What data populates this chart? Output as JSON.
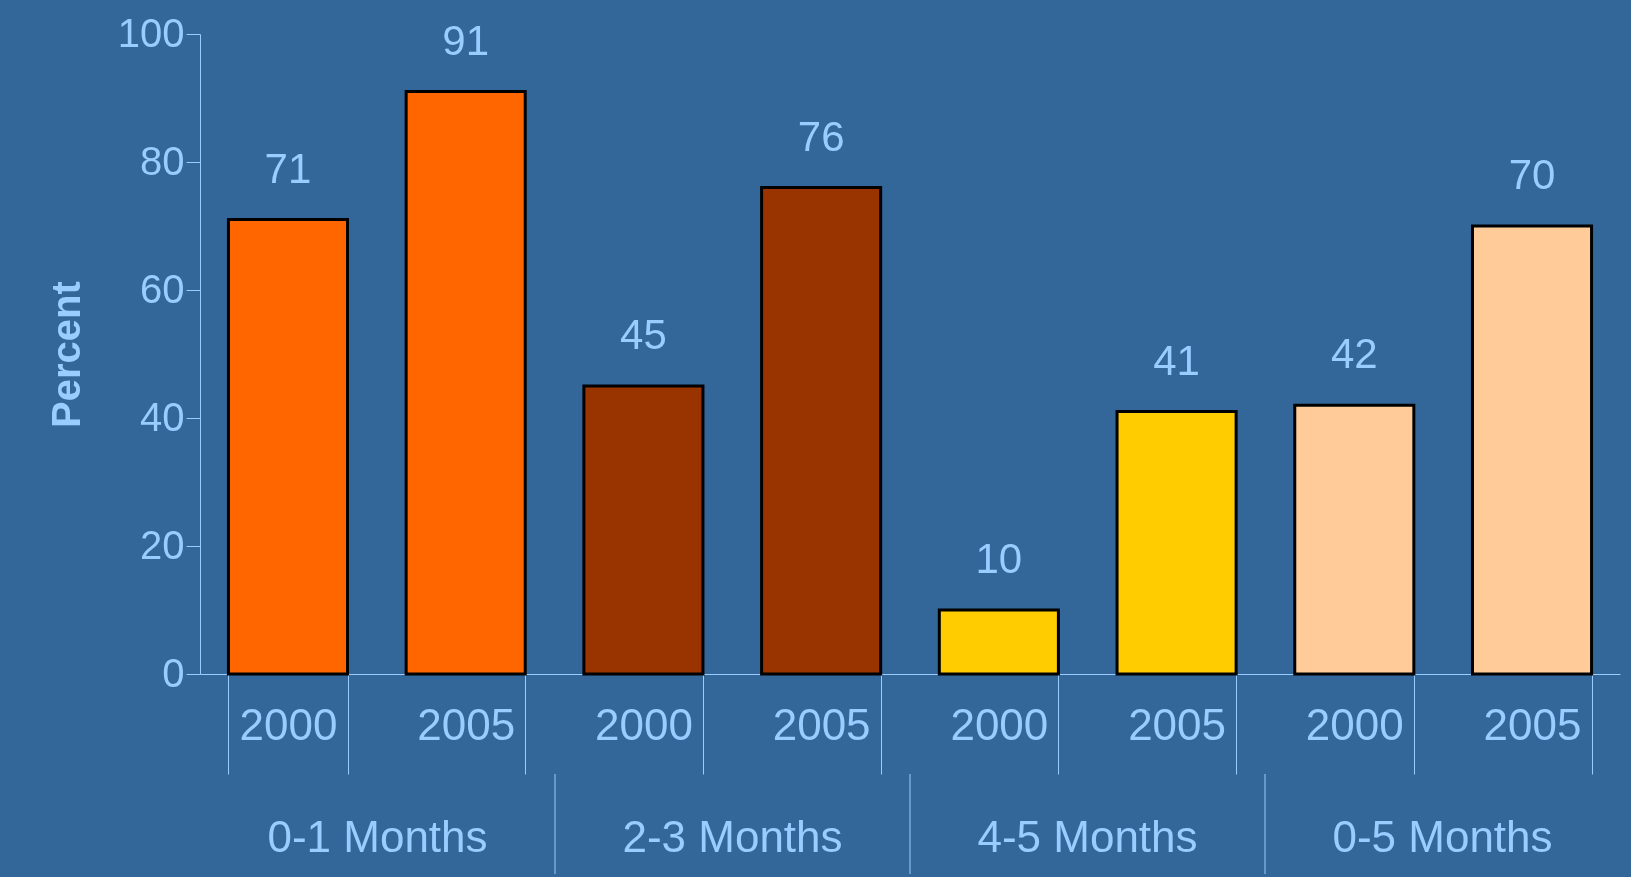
{
  "chart_data": {
    "type": "bar",
    "ylabel": "Percent",
    "categories": [
      "2000",
      "2005",
      "2000",
      "2005",
      "2000",
      "2005",
      "2000",
      "2005"
    ],
    "values": [
      71,
      91,
      45,
      76,
      10,
      41,
      42,
      70
    ],
    "colors": [
      "#ff6600",
      "#ff6600",
      "#993300",
      "#993300",
      "#ffcc00",
      "#ffcc00",
      "#ffcc99",
      "#ffcc99"
    ],
    "ylim": [
      0,
      100
    ],
    "yticks": [
      0,
      20,
      40,
      60,
      80,
      100
    ],
    "grid": false,
    "data_labels": true,
    "annotations": [
      "0-1 Months",
      "2-3 Months",
      "4-5 Months",
      "0-5 Months"
    ]
  }
}
